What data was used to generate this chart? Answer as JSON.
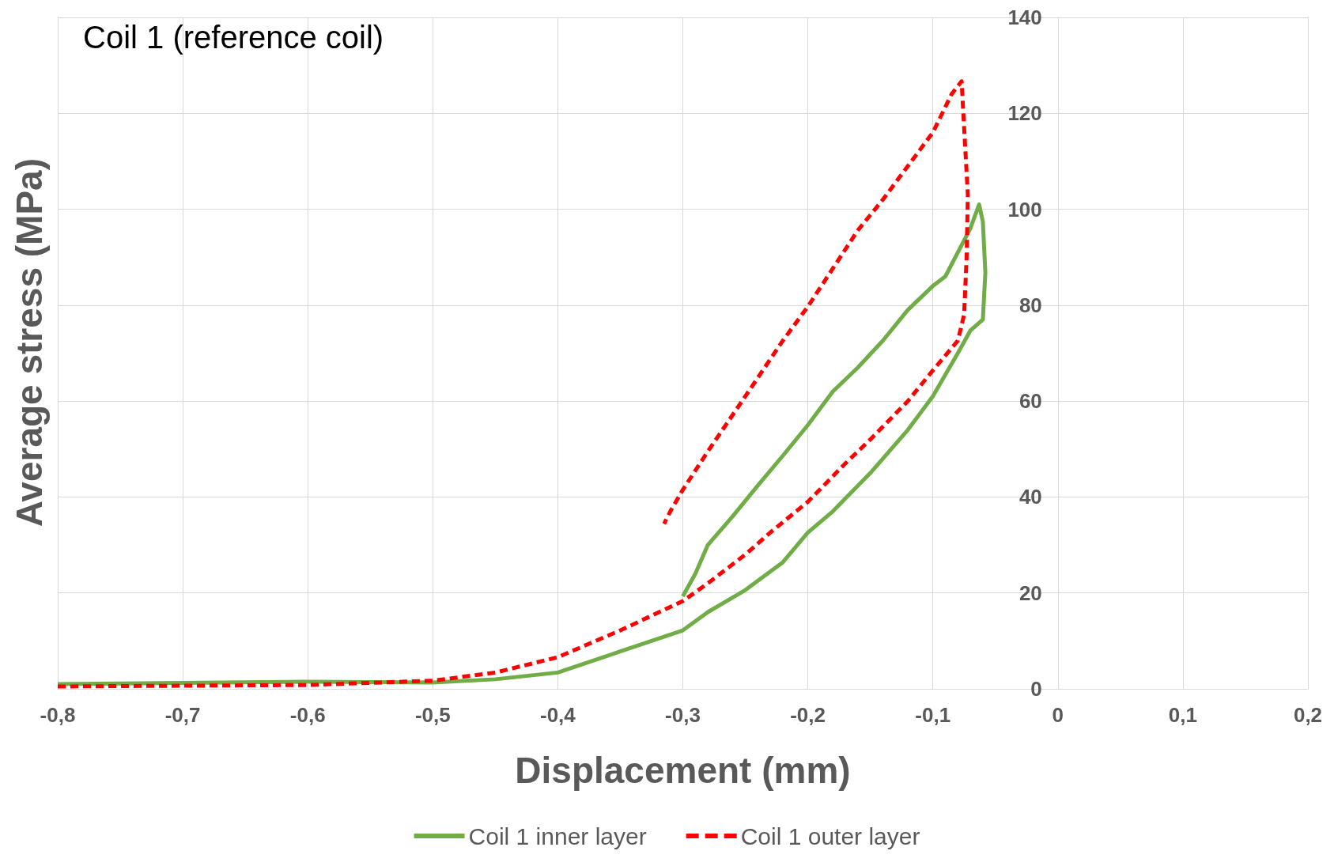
{
  "chart_data": {
    "type": "line",
    "title": "Coil 1 (reference coil)",
    "xlabel": "Displacement (mm)",
    "ylabel": "Average stress (MPa)",
    "xlim": [
      -0.8,
      0.2
    ],
    "xticks": [
      {
        "value": -0.8,
        "label": "-0,8"
      },
      {
        "value": -0.7,
        "label": "-0,7"
      },
      {
        "value": -0.6,
        "label": "-0,6"
      },
      {
        "value": -0.5,
        "label": "-0,5"
      },
      {
        "value": -0.4,
        "label": "-0,4"
      },
      {
        "value": -0.3,
        "label": "-0,3"
      },
      {
        "value": -0.2,
        "label": "-0,2"
      },
      {
        "value": -0.1,
        "label": "-0,1"
      },
      0,
      {
        "value": 0.1,
        "label": "0,1"
      },
      {
        "value": 0.2,
        "label": "0,2"
      }
    ],
    "ylim": [
      0,
      140
    ],
    "yticks": [
      0,
      20,
      40,
      60,
      80,
      100,
      120,
      140
    ],
    "grid": true,
    "legend": "bottom",
    "marker": "none",
    "series": [
      {
        "name": "Coil 1 inner layer",
        "color": "#70ad47",
        "line_style": "solid",
        "x": [
          -0.8,
          -0.6,
          -0.5,
          -0.45,
          -0.4,
          -0.35,
          -0.3,
          -0.28,
          -0.25,
          -0.22,
          -0.2,
          -0.18,
          -0.15,
          -0.12,
          -0.1,
          -0.08,
          -0.07,
          -0.06,
          -0.058,
          -0.06,
          -0.063,
          -0.07,
          -0.08,
          -0.09,
          -0.1,
          -0.12,
          -0.14,
          -0.16,
          -0.18,
          -0.2,
          -0.22,
          -0.24,
          -0.26,
          -0.28,
          -0.29,
          -0.3
        ],
        "values": [
          1,
          1.5,
          1.3,
          2,
          3.4,
          7.8,
          12.2,
          16,
          20.6,
          26.4,
          32.6,
          37,
          45,
          54,
          61,
          70,
          74.7,
          77,
          86.8,
          97.4,
          101,
          96,
          91,
          86,
          84,
          79,
          72.6,
          67,
          62,
          55,
          48.6,
          42.4,
          36,
          30,
          24,
          19.3
        ]
      },
      {
        "name": "Coil 1 outer layer",
        "color": "#ff0000",
        "line_style": "dashed",
        "x": [
          -0.8,
          -0.6,
          -0.5,
          -0.45,
          -0.4,
          -0.35,
          -0.3,
          -0.28,
          -0.25,
          -0.23,
          -0.2,
          -0.17,
          -0.15,
          -0.12,
          -0.1,
          -0.08,
          -0.075,
          -0.073,
          -0.072,
          -0.075,
          -0.077,
          -0.085,
          -0.1,
          -0.12,
          -0.14,
          -0.16,
          -0.2,
          -0.22,
          -0.25,
          -0.28,
          -0.3,
          -0.31,
          -0.315
        ],
        "values": [
          0.5,
          0.8,
          1.7,
          3.4,
          6.6,
          12.2,
          18.3,
          22,
          28,
          32.6,
          39,
          47,
          52,
          60,
          66.4,
          72.6,
          78,
          90,
          103,
          117,
          126.7,
          124,
          116,
          109,
          102,
          95.6,
          79.7,
          72.6,
          61,
          49.5,
          41.5,
          37,
          34.4
        ]
      }
    ]
  }
}
